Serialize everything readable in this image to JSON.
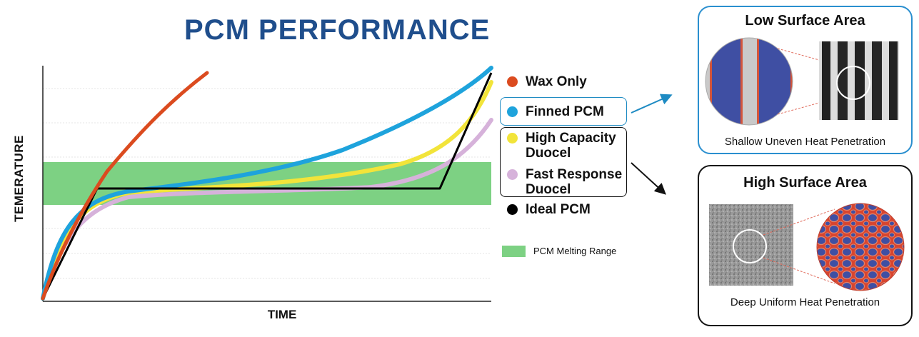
{
  "title": "PCM PERFORMANCE",
  "chart_data": {
    "type": "line",
    "xlabel": "TIME",
    "ylabel": "TEMERATURE",
    "band": {
      "label": "PCM Melting Range",
      "color": "#7dd183"
    },
    "series": [
      {
        "name": "Wax Only",
        "color": "#db4b1f"
      },
      {
        "name": "Finned PCM",
        "color": "#1ea3dc"
      },
      {
        "name": "High Capacity Duocel",
        "color": "#f2e43a"
      },
      {
        "name": "Fast Response Duocel",
        "color": "#d6b2da"
      },
      {
        "name": "Ideal PCM",
        "color": "#000000"
      }
    ]
  },
  "legend": {
    "wax": "Wax Only",
    "finned": "Finned PCM",
    "high_capacity": "High Capacity Duocel",
    "fast_response": "Fast Response Duocel",
    "ideal": "Ideal PCM",
    "melting_range": "PCM Melting Range"
  },
  "panels": {
    "low": {
      "title": "Low Surface Area",
      "caption": "Shallow Uneven Heat Penetration",
      "border_color": "#2a8fcf"
    },
    "high": {
      "title": "High Surface Area",
      "caption": "Deep Uniform Heat Penetration",
      "border_color": "#111111"
    }
  }
}
